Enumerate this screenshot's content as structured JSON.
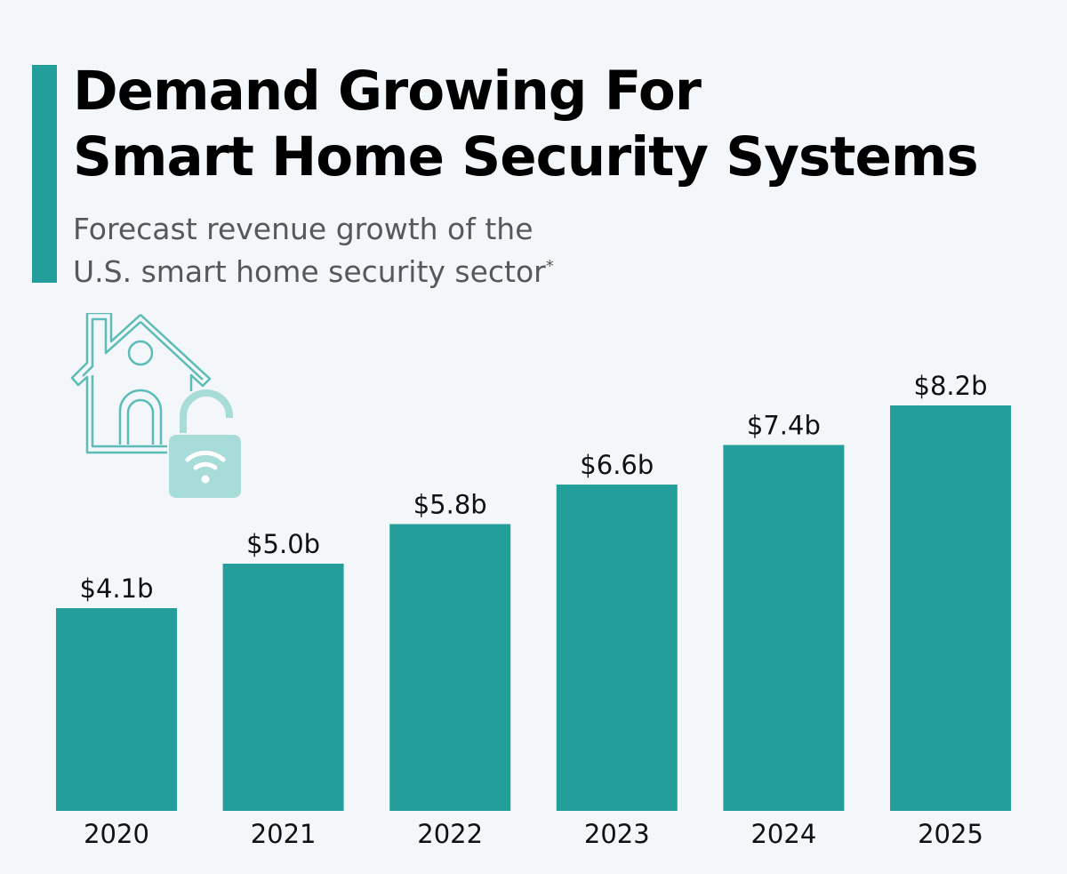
{
  "header": {
    "title_line1": "Demand Growing For",
    "title_line2": "Smart Home Security Systems",
    "subtitle_line1": "Forecast revenue growth of the",
    "subtitle_line2": "U.S. smart home security sector",
    "subtitle_footnote_mark": "*"
  },
  "colors": {
    "bar": "#239e9a",
    "accent": "#239e9a",
    "icon_outline": "#5bbcb8",
    "icon_lock": "#a8dcd9"
  },
  "icon": "smart-home-lock-icon",
  "chart_data": {
    "type": "bar",
    "categories": [
      "2020",
      "2021",
      "2022",
      "2023",
      "2024",
      "2025"
    ],
    "values": [
      4.1,
      5.0,
      5.8,
      6.6,
      7.4,
      8.2
    ],
    "data_labels": [
      "$4.1b",
      "$5.0b",
      "$5.8b",
      "$6.6b",
      "$7.4b",
      "$8.2b"
    ],
    "title": "Demand Growing For Smart Home Security Systems",
    "xlabel": "",
    "ylabel": "",
    "ylim": [
      0,
      8.2
    ],
    "grid": false
  }
}
